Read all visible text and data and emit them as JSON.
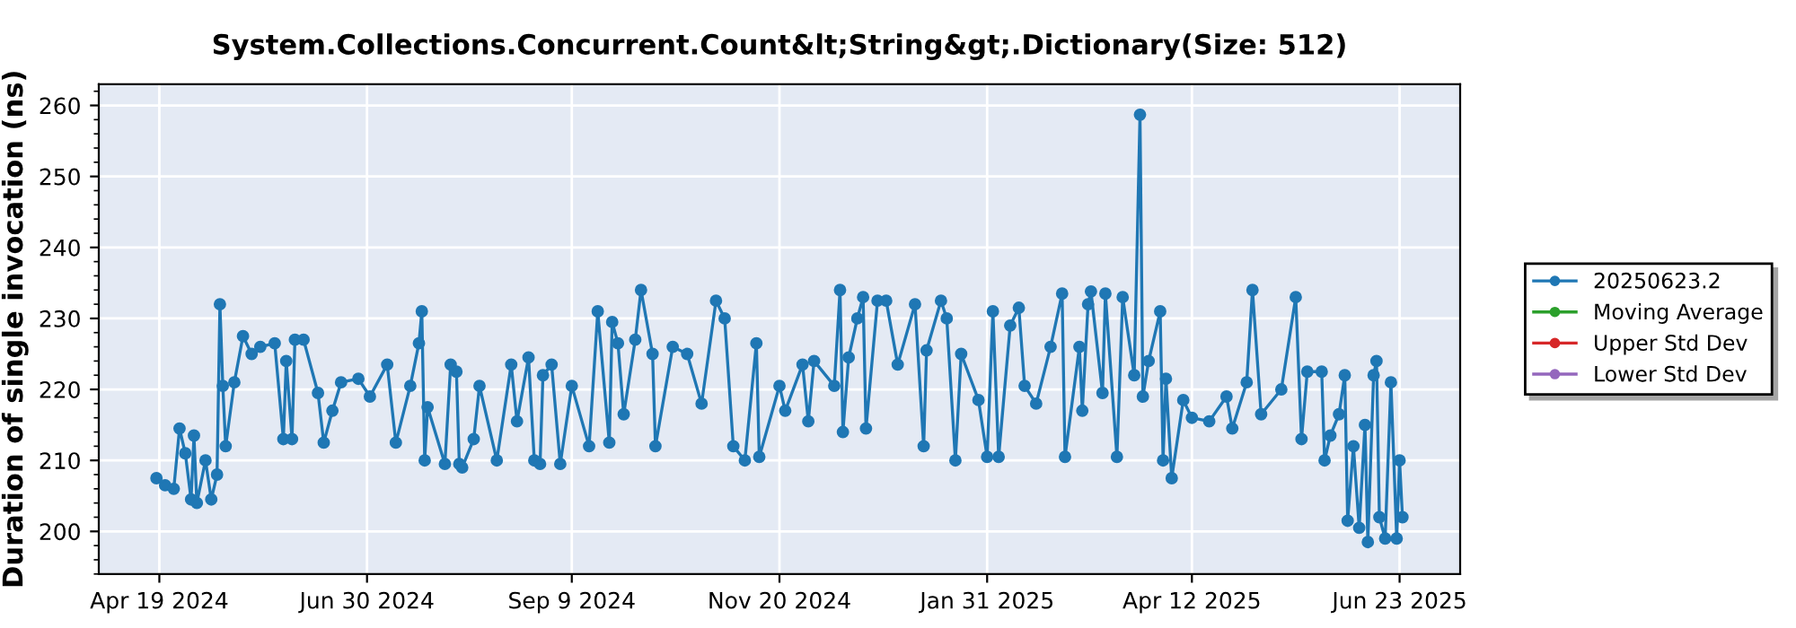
{
  "chart_data": {
    "type": "line",
    "title": "System.Collections.Concurrent.Count&lt;String&gt;.Dictionary(Size: 512)",
    "ylabel": "Duration of single invocation (ns)",
    "xlim": [
      "2024-03-29",
      "2025-07-14"
    ],
    "ylim": [
      194,
      263
    ],
    "xticks": [
      {
        "value": "2024-04-19",
        "label": "Apr 19 2024"
      },
      {
        "value": "2024-06-30",
        "label": "Jun 30 2024"
      },
      {
        "value": "2024-09-09",
        "label": "Sep 9 2024"
      },
      {
        "value": "2024-11-20",
        "label": "Nov 20 2024"
      },
      {
        "value": "2025-01-31",
        "label": "Jan 31 2025"
      },
      {
        "value": "2025-04-12",
        "label": "Apr 12 2025"
      },
      {
        "value": "2025-06-23",
        "label": "Jun 23 2025"
      }
    ],
    "yticks": [
      200,
      210,
      220,
      230,
      240,
      250,
      260
    ],
    "grid": true,
    "legend": "right",
    "marker": "circle",
    "line_style": "solid",
    "series": [
      {
        "name": "20250623.2",
        "color": "#1f77b4",
        "x": [
          "2024-04-18",
          "2024-04-21",
          "2024-04-24",
          "2024-04-26",
          "2024-04-28",
          "2024-04-30",
          "2024-05-01",
          "2024-05-02",
          "2024-05-05",
          "2024-05-07",
          "2024-05-09",
          "2024-05-10",
          "2024-05-11",
          "2024-05-12",
          "2024-05-15",
          "2024-05-18",
          "2024-05-21",
          "2024-05-24",
          "2024-05-29",
          "2024-06-01",
          "2024-06-02",
          "2024-06-04",
          "2024-06-05",
          "2024-06-08",
          "2024-06-13",
          "2024-06-15",
          "2024-06-18",
          "2024-06-21",
          "2024-06-27",
          "2024-07-01",
          "2024-07-07",
          "2024-07-10",
          "2024-07-15",
          "2024-07-18",
          "2024-07-19",
          "2024-07-20",
          "2024-07-21",
          "2024-07-27",
          "2024-07-29",
          "2024-07-31",
          "2024-08-01",
          "2024-08-02",
          "2024-08-06",
          "2024-08-08",
          "2024-08-14",
          "2024-08-19",
          "2024-08-21",
          "2024-08-25",
          "2024-08-27",
          "2024-08-29",
          "2024-08-30",
          "2024-09-02",
          "2024-09-05",
          "2024-09-09",
          "2024-09-15",
          "2024-09-18",
          "2024-09-22",
          "2024-09-23",
          "2024-09-25",
          "2024-09-27",
          "2024-10-01",
          "2024-10-03",
          "2024-10-07",
          "2024-10-08",
          "2024-10-14",
          "2024-10-19",
          "2024-10-24",
          "2024-10-29",
          "2024-11-01",
          "2024-11-04",
          "2024-11-08",
          "2024-11-12",
          "2024-11-13",
          "2024-11-20",
          "2024-11-22",
          "2024-11-28",
          "2024-11-30",
          "2024-12-02",
          "2024-12-09",
          "2024-12-11",
          "2024-12-12",
          "2024-12-14",
          "2024-12-17",
          "2024-12-19",
          "2024-12-20",
          "2024-12-24",
          "2024-12-27",
          "2024-12-31",
          "2025-01-06",
          "2025-01-09",
          "2025-01-10",
          "2025-01-15",
          "2025-01-17",
          "2025-01-20",
          "2025-01-22",
          "2025-01-28",
          "2025-01-31",
          "2025-02-02",
          "2025-02-04",
          "2025-02-08",
          "2025-02-11",
          "2025-02-13",
          "2025-02-17",
          "2025-02-22",
          "2025-02-26",
          "2025-02-27",
          "2025-03-04",
          "2025-03-05",
          "2025-03-07",
          "2025-03-08",
          "2025-03-12",
          "2025-03-13",
          "2025-03-17",
          "2025-03-19",
          "2025-03-23",
          "2025-03-25",
          "2025-03-26",
          "2025-03-28",
          "2025-04-01",
          "2025-04-02",
          "2025-04-03",
          "2025-04-05",
          "2025-04-09",
          "2025-04-12",
          "2025-04-18",
          "2025-04-24",
          "2025-04-26",
          "2025-05-01",
          "2025-05-03",
          "2025-05-06",
          "2025-05-13",
          "2025-05-18",
          "2025-05-20",
          "2025-05-22",
          "2025-05-27",
          "2025-05-28",
          "2025-05-30",
          "2025-06-02",
          "2025-06-04",
          "2025-06-05",
          "2025-06-07",
          "2025-06-09",
          "2025-06-11",
          "2025-06-12",
          "2025-06-14",
          "2025-06-15",
          "2025-06-16",
          "2025-06-18",
          "2025-06-20",
          "2025-06-22",
          "2025-06-23",
          "2025-06-24"
        ],
        "values": [
          207.5,
          206.5,
          206,
          214.5,
          211,
          204.5,
          213.5,
          204,
          210,
          204.5,
          208,
          232,
          220.5,
          212,
          221,
          227.5,
          225,
          226,
          226.5,
          213,
          224,
          213,
          227,
          227,
          219.5,
          212.5,
          217,
          221,
          221.5,
          219,
          223.5,
          212.5,
          220.5,
          226.5,
          231,
          210,
          217.5,
          209.5,
          223.5,
          222.5,
          209.5,
          209,
          213,
          220.5,
          210,
          223.5,
          215.5,
          224.5,
          210,
          209.5,
          222,
          223.5,
          209.5,
          220.5,
          212,
          231,
          212.5,
          229.5,
          226.5,
          216.5,
          227,
          234,
          225,
          212,
          226,
          225,
          218,
          232.5,
          230,
          212,
          210,
          226.5,
          210.5,
          220.5,
          217,
          223.5,
          215.5,
          224,
          220.5,
          234,
          214,
          224.5,
          230,
          233,
          214.5,
          232.5,
          232.5,
          223.5,
          232,
          212,
          225.5,
          232.5,
          230,
          210,
          225,
          218.5,
          210.5,
          231,
          210.5,
          229,
          231.5,
          220.5,
          218,
          226,
          233.5,
          210.5,
          226,
          217,
          232,
          233.8,
          219.5,
          233.5,
          210.5,
          233,
          222,
          258.7,
          219,
          224,
          231,
          210,
          221.5,
          207.5,
          218.5,
          216,
          215.5,
          219,
          214.5,
          221,
          234,
          216.5,
          220,
          233,
          213,
          222.5,
          222.5,
          210,
          213.5,
          216.5,
          222,
          201.5,
          212,
          200.5,
          215,
          198.5,
          222,
          224,
          202,
          199,
          221,
          199,
          210,
          202
        ]
      },
      {
        "name": "Moving Average",
        "color": "#2ca02c"
      },
      {
        "name": "Upper Std Dev",
        "color": "#d62728"
      },
      {
        "name": "Lower Std Dev",
        "color": "#9467bd"
      }
    ]
  }
}
